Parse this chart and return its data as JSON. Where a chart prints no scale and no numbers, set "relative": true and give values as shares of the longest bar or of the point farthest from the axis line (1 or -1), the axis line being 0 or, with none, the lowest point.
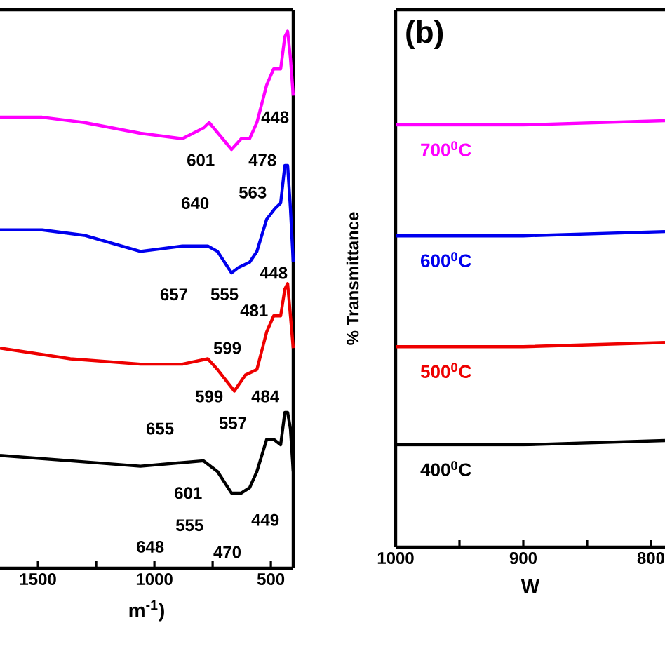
{
  "chart_data": [
    {
      "type": "line",
      "relative": true,
      "xlabel": "m$^{-1}$)",
      "xlim": [
        1663,
        404
      ],
      "xticks": [
        1500,
        {
          "value": 1250,
          "label": null
        },
        1000,
        {
          "value": 750,
          "label": null
        },
        500
      ],
      "series": [
        {
          "color": "#ff00ff",
          "x": [
            1663,
            1482,
            1301,
            1060,
            880,
            789,
            765,
            669,
            627,
            591,
            560,
            518,
            488,
            458,
            440,
            428,
            416,
            404
          ],
          "values": [
            0.84,
            0.84,
            0.83,
            0.81,
            0.8,
            0.82,
            0.83,
            0.78,
            0.8,
            0.8,
            0.83,
            0.9,
            0.93,
            0.93,
            0.99,
            1.0,
            0.95,
            0.88
          ]
        },
        {
          "color": "#0000ee",
          "x": [
            1663,
            1482,
            1301,
            1060,
            880,
            771,
            729,
            669,
            639,
            591,
            560,
            518,
            482,
            458,
            440,
            428,
            416,
            404
          ],
          "values": [
            0.63,
            0.63,
            0.62,
            0.59,
            0.6,
            0.6,
            0.59,
            0.55,
            0.56,
            0.57,
            0.59,
            0.65,
            0.67,
            0.68,
            0.75,
            0.75,
            0.67,
            0.57
          ]
        },
        {
          "color": "#ee0000",
          "x": [
            1663,
            1361,
            1060,
            880,
            771,
            729,
            657,
            609,
            560,
            518,
            488,
            458,
            440,
            428,
            416,
            404
          ],
          "values": [
            0.41,
            0.39,
            0.38,
            0.38,
            0.39,
            0.37,
            0.33,
            0.36,
            0.37,
            0.44,
            0.47,
            0.47,
            0.52,
            0.53,
            0.47,
            0.41
          ]
        },
        {
          "color": "#000000",
          "x": [
            1663,
            1361,
            1060,
            789,
            729,
            669,
            627,
            591,
            560,
            518,
            488,
            458,
            440,
            428,
            416,
            404
          ],
          "values": [
            0.21,
            0.2,
            0.19,
            0.2,
            0.18,
            0.14,
            0.14,
            0.15,
            0.18,
            0.24,
            0.24,
            0.23,
            0.29,
            0.29,
            0.26,
            0.18
          ]
        }
      ],
      "annotations": [
        "448",
        "601",
        "478",
        "640",
        "563",
        "448",
        "657",
        "555",
        "481",
        "599",
        "599",
        "484",
        "655",
        "557",
        "601",
        "555",
        "449",
        "648",
        "470"
      ]
    },
    {
      "type": "line",
      "relative": true,
      "xlabel": "W",
      "ylabel": "% Transmittance",
      "xlim": [
        1000,
        789
      ],
      "xticks": [
        1000,
        {
          "value": 950,
          "label": null
        },
        900,
        {
          "value": 850,
          "label": null
        },
        800
      ],
      "annotations": [
        "(b)"
      ],
      "series": [
        {
          "name": "700$^{0}$C",
          "color": "#ff00ff",
          "x": [
            1000,
            900,
            789
          ],
          "values": [
            0.99,
            0.99,
            1.0
          ]
        },
        {
          "name": "600$^{0}$C",
          "color": "#0000ee",
          "x": [
            1000,
            900,
            789
          ],
          "values": [
            0.73,
            0.73,
            0.74
          ]
        },
        {
          "name": "500$^{0}$C",
          "color": "#ee0000",
          "x": [
            1000,
            900,
            789
          ],
          "values": [
            0.47,
            0.47,
            0.48
          ]
        },
        {
          "name": "400$^{0}$C",
          "color": "#000000",
          "x": [
            1000,
            900,
            789
          ],
          "values": [
            0.24,
            0.24,
            0.25
          ]
        }
      ]
    }
  ]
}
